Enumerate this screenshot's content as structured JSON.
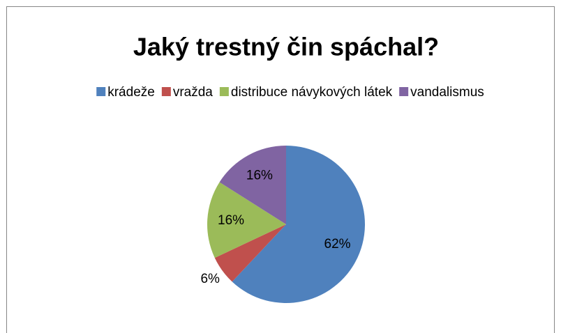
{
  "chart_data": {
    "type": "pie",
    "title": "Jaký trestný čin spáchal?",
    "categories": [
      "krádeže",
      "vražda",
      "distribuce návykových látek",
      "vandalismus"
    ],
    "values": [
      62,
      6,
      16,
      16
    ],
    "value_labels": [
      "62%",
      "6%",
      "16%",
      "16%"
    ],
    "colors": [
      "#4f81bd",
      "#c0504d",
      "#9bbb59",
      "#8064a2"
    ],
    "legend": "top"
  }
}
